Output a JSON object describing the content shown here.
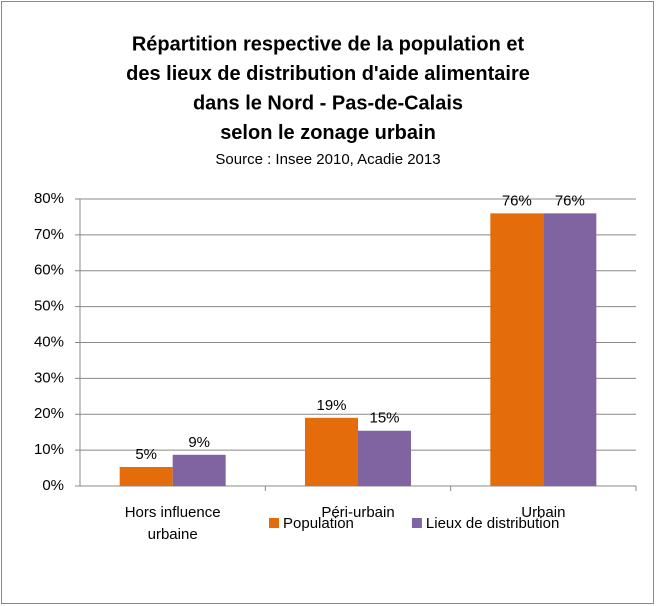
{
  "chart_data": {
    "type": "bar",
    "title": [
      "Répartition respective de la population et",
      "des lieux de distribution d'aide alimentaire",
      "dans le Nord - Pas-de-Calais",
      "selon le zonage urbain"
    ],
    "subtitle": "Source : Insee 2010, Acadie 2013",
    "categories": [
      "Hors influence urbaine",
      "Péri-urbain",
      "Urbain"
    ],
    "series": [
      {
        "name": "Population",
        "color": "#e46c0a",
        "values": [
          5.3,
          19,
          76
        ],
        "value_labels": [
          "5%",
          "19%",
          "76%"
        ]
      },
      {
        "name": "Lieux de distribution",
        "color": "#8064a2",
        "values": [
          8.7,
          15.4,
          76
        ],
        "value_labels": [
          "9%",
          "15%",
          "76%"
        ]
      }
    ],
    "ylim": [
      0,
      80
    ],
    "yticks": [
      {
        "value": 0,
        "label": "0%"
      },
      {
        "value": 10,
        "label": "10%"
      },
      {
        "value": 20,
        "label": "20%"
      },
      {
        "value": 30,
        "label": "30%"
      },
      {
        "value": 40,
        "label": "40%"
      },
      {
        "value": 50,
        "label": "50%"
      },
      {
        "value": 60,
        "label": "60%"
      },
      {
        "value": 70,
        "label": "70%"
      },
      {
        "value": 80,
        "label": "80%"
      }
    ],
    "grid": true,
    "legend": "bottom"
  }
}
